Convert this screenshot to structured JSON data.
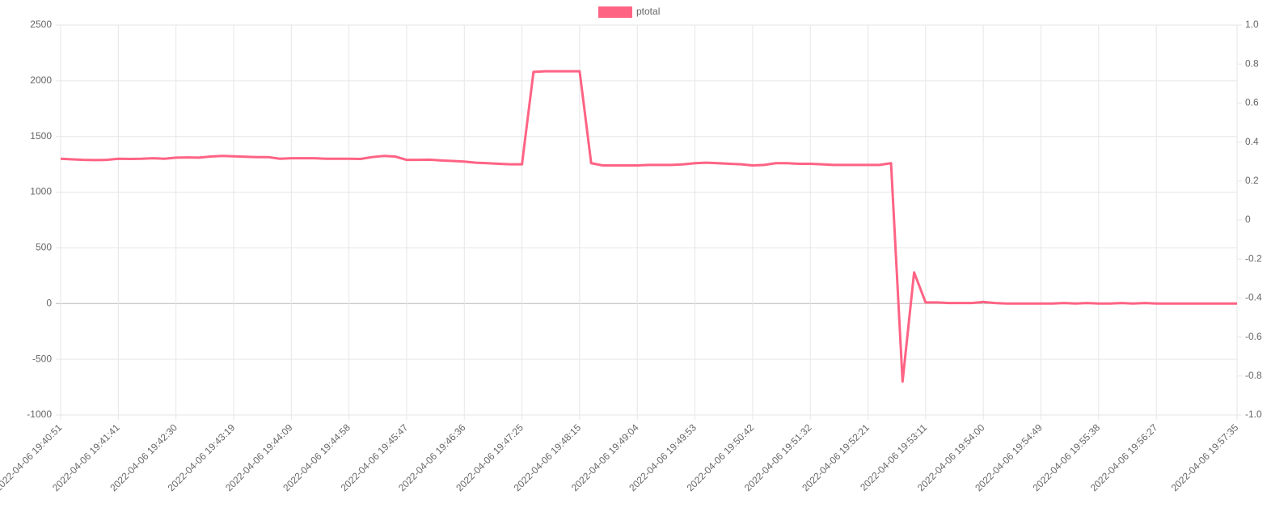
{
  "chart_data": {
    "type": "line",
    "x": [
      "2022-04-06 19:40:51",
      null,
      null,
      null,
      null,
      "2022-04-06 19:41:41",
      null,
      null,
      null,
      null,
      "2022-04-06 19:42:30",
      null,
      null,
      null,
      null,
      "2022-04-06 19:43:19",
      null,
      null,
      null,
      null,
      "2022-04-06 19:44:09",
      null,
      null,
      null,
      null,
      "2022-04-06 19:44:58",
      null,
      null,
      null,
      null,
      "2022-04-06 19:45:47",
      null,
      null,
      null,
      null,
      "2022-04-06 19:46:36",
      null,
      null,
      null,
      null,
      "2022-04-06 19:47:25",
      null,
      null,
      null,
      null,
      "2022-04-06 19:48:15",
      null,
      null,
      null,
      null,
      "2022-04-06 19:49:04",
      null,
      null,
      null,
      null,
      "2022-04-06 19:49:53",
      null,
      null,
      null,
      null,
      "2022-04-06 19:50:42",
      null,
      null,
      null,
      null,
      "2022-04-06 19:51:32",
      null,
      null,
      null,
      null,
      "2022-04-06 19:52:21",
      null,
      null,
      null,
      null,
      "2022-04-06 19:53:11",
      null,
      null,
      null,
      null,
      "2022-04-06 19:54:00",
      null,
      null,
      null,
      null,
      "2022-04-06 19:54:49",
      null,
      null,
      null,
      null,
      "2022-04-06 19:55:38",
      null,
      null,
      null,
      null,
      "2022-04-06 19:56:27",
      null,
      null,
      null,
      null,
      null,
      null,
      "2022-04-06 19:57:35"
    ],
    "series": [
      {
        "name": "ptotal",
        "color": "#ff6384",
        "values": [
          1300,
          1295,
          1290,
          1288,
          1290,
          1300,
          1298,
          1300,
          1305,
          1300,
          1310,
          1312,
          1310,
          1320,
          1325,
          1322,
          1318,
          1315,
          1315,
          1300,
          1305,
          1305,
          1305,
          1300,
          1300,
          1300,
          1298,
          1315,
          1325,
          1320,
          1290,
          1290,
          1292,
          1285,
          1280,
          1275,
          1265,
          1260,
          1255,
          1250,
          1250,
          2080,
          2085,
          2085,
          2085,
          2085,
          1260,
          1240,
          1240,
          1240,
          1240,
          1245,
          1245,
          1245,
          1250,
          1260,
          1265,
          1260,
          1255,
          1250,
          1240,
          1245,
          1260,
          1260,
          1255,
          1255,
          1250,
          1245,
          1245,
          1245,
          1245,
          1245,
          1260,
          -700,
          280,
          10,
          10,
          5,
          5,
          5,
          15,
          5,
          0,
          0,
          0,
          0,
          0,
          5,
          0,
          5,
          0,
          0,
          5,
          0,
          5,
          0,
          0,
          0,
          0,
          0,
          0,
          0,
          0
        ]
      }
    ],
    "ylim": [
      -1000,
      2500
    ],
    "yticks": [
      -1000,
      -500,
      0,
      500,
      1000,
      1500,
      2000,
      2500
    ],
    "y2lim": [
      -1.0,
      1.0
    ],
    "y2ticks": [
      {
        "value": -1.0,
        "label": "-1.0"
      },
      -0.8,
      -0.6,
      -0.4,
      -0.2,
      0,
      0.2,
      0.4,
      0.6,
      0.8,
      {
        "value": 1.0,
        "label": "1.0"
      }
    ],
    "grid": true,
    "legend": "top"
  }
}
